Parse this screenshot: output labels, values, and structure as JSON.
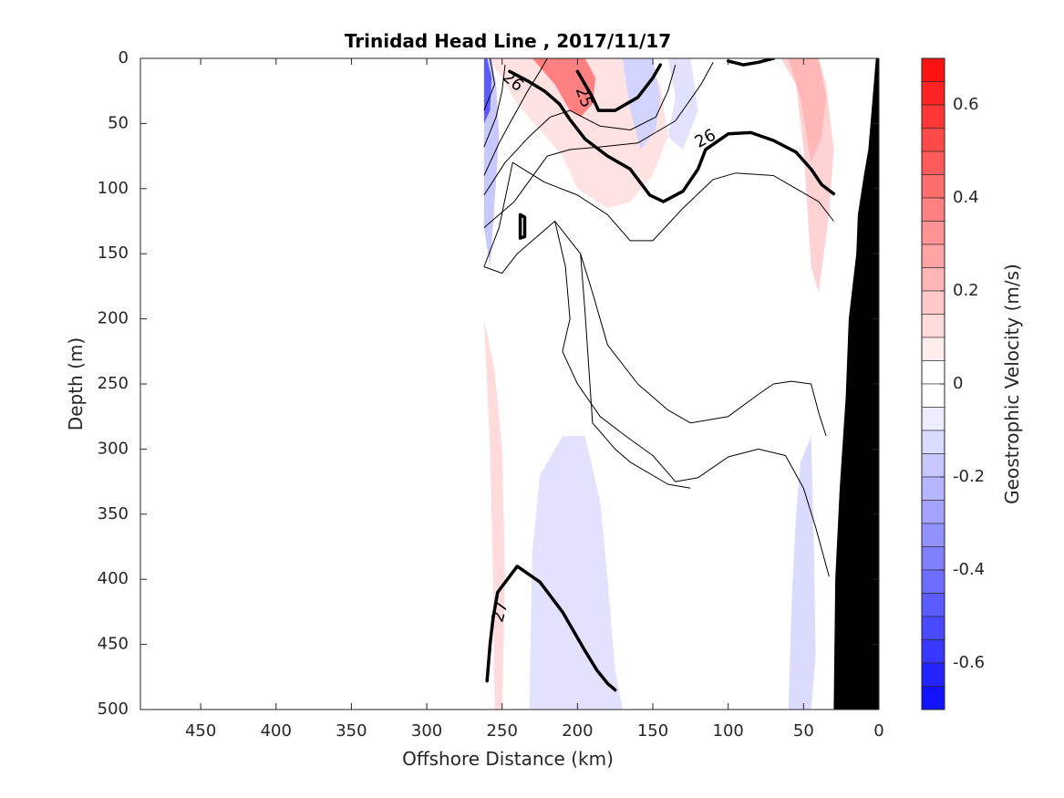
{
  "chart_data": {
    "type": "contour",
    "title": "Trinidad Head Line , 2017/11/17",
    "xlabel": "Offshore Distance (km)",
    "ylabel": "Depth (m)",
    "colorbar_label": "Geostrophic Velocity (m/s)",
    "xlim": [
      490,
      0
    ],
    "ylim": [
      500,
      0
    ],
    "x_ticks": [
      450,
      400,
      350,
      300,
      250,
      200,
      150,
      100,
      50,
      0
    ],
    "y_ticks": [
      0,
      50,
      100,
      150,
      200,
      250,
      300,
      350,
      400,
      450,
      500
    ],
    "colorbar_range": [
      -0.7,
      0.7
    ],
    "colorbar_ticks": [
      0.6,
      0.4,
      0.2,
      0,
      -0.2,
      -0.4,
      -0.6
    ],
    "colorbar_levels": 28,
    "colors": {
      "positive": "#ff0000",
      "negative": "#0000ff",
      "bathymetry": "#000000"
    },
    "contour_labels": [
      {
        "text": "26",
        "x": 243,
        "y": 18,
        "angle": 40
      },
      {
        "text": "25",
        "x": 196,
        "y": 30,
        "angle": 70
      },
      {
        "text": "26",
        "x": 115,
        "y": 62,
        "angle": -28
      },
      {
        "text": "27",
        "x": 251,
        "y": 425,
        "angle": -75
      }
    ],
    "bold_contours": [
      [
        [
          260,
          478
        ],
        [
          258,
          450
        ],
        [
          256,
          430
        ],
        [
          253,
          410
        ],
        [
          240,
          390
        ],
        [
          225,
          402
        ],
        [
          210,
          425
        ],
        [
          195,
          455
        ],
        [
          187,
          470
        ],
        [
          180,
          480
        ],
        [
          175,
          485
        ]
      ],
      [
        [
          245,
          10
        ],
        [
          232,
          18
        ],
        [
          222,
          25
        ],
        [
          212,
          35
        ],
        [
          205,
          47
        ],
        [
          195,
          62
        ],
        [
          180,
          75
        ],
        [
          165,
          85
        ],
        [
          152,
          105
        ],
        [
          143,
          110
        ],
        [
          130,
          102
        ],
        [
          120,
          85
        ],
        [
          115,
          70
        ],
        [
          100,
          58
        ],
        [
          85,
          57
        ],
        [
          70,
          63
        ],
        [
          55,
          72
        ],
        [
          45,
          85
        ],
        [
          38,
          97
        ],
        [
          30,
          104
        ]
      ],
      [
        [
          200,
          10
        ],
        [
          195,
          20
        ],
        [
          190,
          30
        ],
        [
          186,
          40
        ],
        [
          175,
          40
        ],
        [
          160,
          30
        ],
        [
          150,
          15
        ],
        [
          145,
          5
        ]
      ],
      [
        [
          100,
          2
        ],
        [
          90,
          5
        ],
        [
          80,
          3
        ],
        [
          70,
          0
        ]
      ],
      [
        [
          238,
          120
        ],
        [
          238,
          138
        ],
        [
          235,
          137
        ],
        [
          235,
          122
        ],
        [
          238,
          120
        ]
      ]
    ],
    "thin_contours": [
      [
        [
          262,
          40
        ],
        [
          255,
          20
        ],
        [
          258,
          0
        ]
      ],
      [
        [
          262,
          68
        ],
        [
          254,
          45
        ],
        [
          250,
          25
        ],
        [
          248,
          5
        ]
      ],
      [
        [
          262,
          90
        ],
        [
          252,
          65
        ],
        [
          245,
          50
        ],
        [
          233,
          25
        ],
        [
          225,
          10
        ],
        [
          220,
          0
        ]
      ],
      [
        [
          262,
          105
        ],
        [
          248,
          80
        ],
        [
          232,
          60
        ],
        [
          218,
          45
        ],
        [
          205,
          40
        ],
        [
          185,
          52
        ],
        [
          165,
          55
        ],
        [
          148,
          45
        ],
        [
          140,
          25
        ],
        [
          135,
          5
        ]
      ],
      [
        [
          262,
          130
        ],
        [
          242,
          110
        ],
        [
          220,
          75
        ],
        [
          205,
          70
        ],
        [
          185,
          68
        ],
        [
          160,
          65
        ],
        [
          135,
          48
        ],
        [
          118,
          20
        ],
        [
          110,
          3
        ]
      ],
      [
        [
          262,
          160
        ],
        [
          252,
          130
        ],
        [
          243,
          80
        ],
        [
          222,
          95
        ],
        [
          200,
          105
        ],
        [
          180,
          120
        ],
        [
          165,
          140
        ],
        [
          150,
          140
        ],
        [
          130,
          115
        ],
        [
          110,
          93
        ],
        [
          95,
          88
        ],
        [
          70,
          90
        ],
        [
          55,
          100
        ],
        [
          40,
          110
        ],
        [
          30,
          125
        ]
      ],
      [
        [
          262,
          160
        ],
        [
          250,
          165
        ],
        [
          240,
          150
        ],
        [
          215,
          125
        ],
        [
          198,
          150
        ],
        [
          190,
          180
        ],
        [
          180,
          220
        ],
        [
          160,
          250
        ],
        [
          140,
          270
        ],
        [
          125,
          280
        ],
        [
          100,
          275
        ],
        [
          80,
          258
        ],
        [
          70,
          250
        ],
        [
          58,
          248
        ],
        [
          45,
          250
        ],
        [
          40,
          272
        ],
        [
          35,
          290
        ]
      ],
      [
        [
          215,
          125
        ],
        [
          208,
          160
        ],
        [
          205,
          200
        ],
        [
          210,
          225
        ],
        [
          200,
          250
        ],
        [
          185,
          275
        ],
        [
          168,
          290
        ],
        [
          150,
          305
        ],
        [
          135,
          325
        ],
        [
          120,
          322
        ],
        [
          100,
          306
        ],
        [
          80,
          300
        ],
        [
          62,
          305
        ],
        [
          50,
          330
        ],
        [
          42,
          360
        ],
        [
          33,
          398
        ]
      ],
      [
        [
          198,
          150
        ],
        [
          195,
          195
        ],
        [
          190,
          280
        ],
        [
          175,
          300
        ],
        [
          165,
          310
        ],
        [
          140,
          327
        ],
        [
          125,
          330
        ]
      ]
    ],
    "positive_regions": [
      {
        "d": [
          [
            240,
            5
          ],
          [
            220,
            0
          ],
          [
            205,
            0
          ],
          [
            195,
            15
          ],
          [
            190,
            35
          ],
          [
            180,
            55
          ],
          [
            170,
            60
          ],
          [
            160,
            50
          ],
          [
            160,
            30
          ],
          [
            170,
            5
          ]
        ],
        "v": 0.2
      },
      {
        "d": [
          [
            260,
            0
          ],
          [
            250,
            15
          ],
          [
            240,
            35
          ],
          [
            225,
            55
          ],
          [
            210,
            75
          ],
          [
            200,
            100
          ],
          [
            180,
            115
          ],
          [
            165,
            110
          ],
          [
            150,
            90
          ],
          [
            140,
            60
          ],
          [
            145,
            20
          ],
          [
            155,
            0
          ]
        ],
        "v": 0.08
      },
      {
        "d": [
          [
            230,
            0
          ],
          [
            215,
            20
          ],
          [
            205,
            40
          ],
          [
            198,
            45
          ],
          [
            190,
            35
          ],
          [
            188,
            15
          ],
          [
            195,
            0
          ]
        ],
        "v": 0.35
      },
      {
        "d": [
          [
            65,
            0
          ],
          [
            55,
            20
          ],
          [
            50,
            70
          ],
          [
            45,
            160
          ],
          [
            40,
            180
          ],
          [
            33,
            120
          ],
          [
            30,
            70
          ],
          [
            35,
            20
          ],
          [
            40,
            0
          ]
        ],
        "v": 0.12
      },
      {
        "d": [
          [
            60,
            0
          ],
          [
            52,
            30
          ],
          [
            48,
            60
          ],
          [
            45,
            80
          ],
          [
            38,
            60
          ],
          [
            35,
            30
          ],
          [
            40,
            0
          ]
        ],
        "v": 0.2
      },
      {
        "d": [
          [
            262,
            200
          ],
          [
            258,
            300
          ],
          [
            256,
            400
          ],
          [
            255,
            500
          ],
          [
            250,
            500
          ],
          [
            248,
            400
          ],
          [
            250,
            300
          ],
          [
            255,
            240
          ]
        ],
        "v": 0.1
      }
    ],
    "negative_regions": [
      {
        "d": [
          [
            262,
            0
          ],
          [
            262,
            130
          ],
          [
            258,
            160
          ],
          [
            255,
            110
          ],
          [
            252,
            60
          ],
          [
            254,
            20
          ],
          [
            257,
            0
          ]
        ],
        "v": -0.15
      },
      {
        "d": [
          [
            262,
            0
          ],
          [
            262,
            50
          ],
          [
            258,
            40
          ],
          [
            257,
            15
          ],
          [
            260,
            0
          ]
        ],
        "v": -0.45
      },
      {
        "d": [
          [
            232,
            500
          ],
          [
            230,
            380
          ],
          [
            225,
            320
          ],
          [
            210,
            290
          ],
          [
            195,
            290
          ],
          [
            185,
            340
          ],
          [
            180,
            400
          ],
          [
            175,
            470
          ],
          [
            170,
            500
          ]
        ],
        "v": -0.08
      },
      {
        "d": [
          [
            60,
            500
          ],
          [
            58,
            420
          ],
          [
            55,
            350
          ],
          [
            52,
            310
          ],
          [
            45,
            290
          ],
          [
            43,
            380
          ],
          [
            42,
            460
          ],
          [
            45,
            500
          ]
        ],
        "v": -0.1
      },
      {
        "d": [
          [
            125,
            0
          ],
          [
            120,
            40
          ],
          [
            130,
            70
          ],
          [
            140,
            60
          ],
          [
            135,
            30
          ],
          [
            140,
            0
          ]
        ],
        "v": -0.08
      },
      {
        "d": [
          [
            150,
            0
          ],
          [
            145,
            30
          ],
          [
            148,
            55
          ],
          [
            158,
            70
          ],
          [
            165,
            40
          ],
          [
            170,
            0
          ]
        ],
        "v": -0.12
      }
    ],
    "bathymetry": [
      [
        0,
        0
      ],
      [
        2,
        0
      ],
      [
        7,
        70
      ],
      [
        10,
        90
      ],
      [
        14,
        120
      ],
      [
        15,
        150
      ],
      [
        20,
        200
      ],
      [
        22,
        260
      ],
      [
        26,
        330
      ],
      [
        29,
        400
      ],
      [
        30,
        500
      ],
      [
        0,
        500
      ]
    ]
  }
}
